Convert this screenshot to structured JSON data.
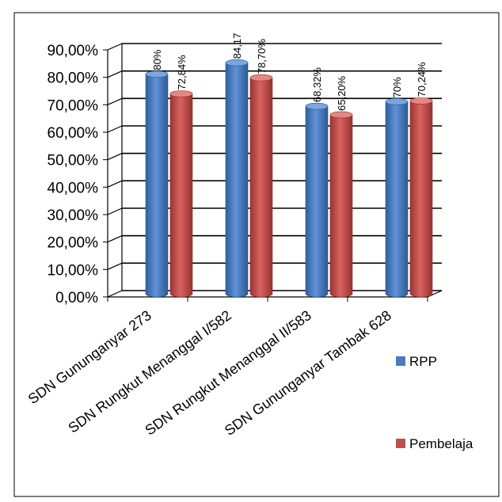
{
  "chart_data": {
    "type": "bar",
    "style": "3d-clustered-column",
    "categories": [
      "SDN Gununganyar 273",
      "SDN Rungkut Menanggal I/582",
      "SDN Rungkut Menanggal II/583",
      "SDN Gununganyar Tambak 628"
    ],
    "series": [
      {
        "name": "RPP",
        "color": "#4a7cc0",
        "values": [
          80,
          84.17,
          68.32,
          70
        ],
        "labels": [
          "80%",
          "84,17",
          "68,32%",
          "70%"
        ]
      },
      {
        "name": "Pembelaja",
        "color": "#c0504d",
        "values": [
          72.84,
          78.7,
          65.2,
          70.24
        ],
        "labels": [
          "72,84%",
          "78,70%",
          "65,20%",
          "70,24%"
        ]
      }
    ],
    "ylim": [
      0,
      90
    ],
    "yticks": [
      "0,00%",
      "10,00%",
      "20,00%",
      "30,00%",
      "40,00%",
      "50,00%",
      "60,00%",
      "70,00%",
      "80,00%",
      "90,00%"
    ],
    "grid": true,
    "legend": "right"
  }
}
